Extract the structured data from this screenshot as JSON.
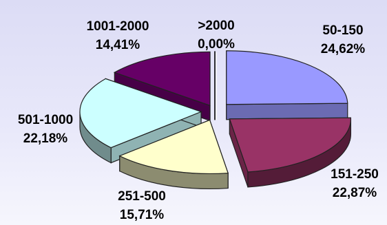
{
  "chart_data": {
    "type": "pie",
    "style": "3d-exploded",
    "slices": [
      {
        "label": "50-150",
        "value": 24.62,
        "value_label": "24,62%",
        "color": "#9999ff"
      },
      {
        "label": "151-250",
        "value": 22.87,
        "value_label": "22,87%",
        "color": "#993366"
      },
      {
        "label": "251-500",
        "value": 15.71,
        "value_label": "15,71%",
        "color": "#ffffcc"
      },
      {
        "label": "501-1000",
        "value": 22.18,
        "value_label": "22,18%",
        "color": "#ccffff"
      },
      {
        "label": "1001-2000",
        "value": 14.41,
        "value_label": "14,41%",
        "color": "#660066"
      },
      {
        "label": ">2000",
        "value": 0.0,
        "value_label": "0,00%",
        "color": "#ff8080"
      }
    ],
    "legend": "none",
    "data_labels": "outside"
  }
}
